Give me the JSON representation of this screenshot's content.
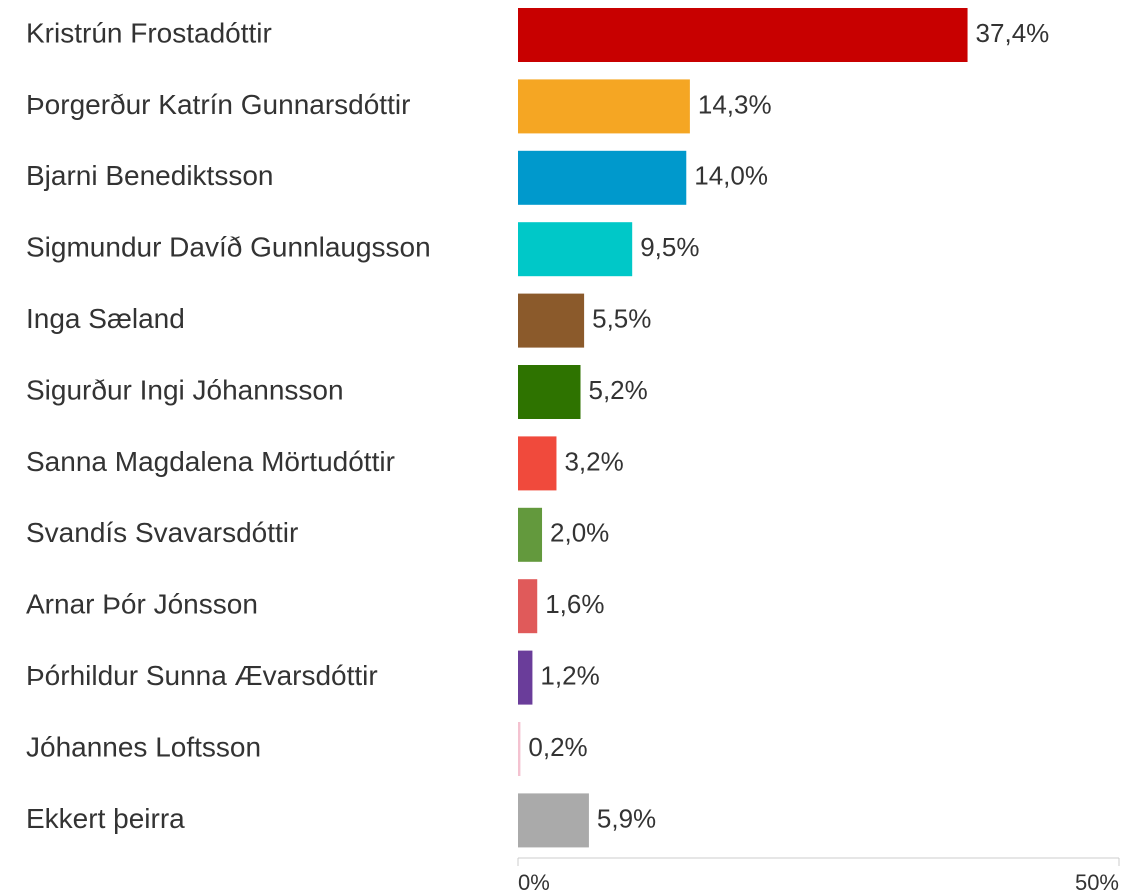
{
  "chart_data": {
    "type": "hbar",
    "categories": [
      "Kristrún Frostadóttir",
      "Þorgerður Katrín Gunnarsdóttir",
      "Bjarni Benediktsson",
      "Sigmundur Davíð Gunnlaugsson",
      "Inga Sæland",
      "Sigurður Ingi Jóhannsson",
      "Sanna Magdalena Mörtudóttir",
      "Svandís Svavarsdóttir",
      "Arnar Þór Jónsson",
      "Þórhildur Sunna Ævarsdóttir",
      "Jóhannes Loftsson",
      "Ekkert þeirra"
    ],
    "values": [
      37.4,
      14.3,
      14.0,
      9.5,
      5.5,
      5.2,
      3.2,
      2.0,
      1.6,
      1.2,
      0.2,
      5.9
    ],
    "value_labels": [
      "37,4%",
      "14,3%",
      "14,0%",
      "9,5%",
      "5,5%",
      "5,2%",
      "3,2%",
      "2,0%",
      "1,6%",
      "1,2%",
      "0,2%",
      "5,9%"
    ],
    "colors": [
      "#c80000",
      "#f5a623",
      "#0099cc",
      "#00c8c8",
      "#8b5a2b",
      "#2e7300",
      "#f04a3c",
      "#63993d",
      "#e05a5a",
      "#6a3d9a",
      "#f4c2d0",
      "#aaaaaa"
    ],
    "xlim": [
      0,
      50
    ],
    "xticks": [
      {
        "value": 0,
        "label": "0%"
      },
      {
        "value": 50,
        "label": "50%"
      }
    ]
  }
}
